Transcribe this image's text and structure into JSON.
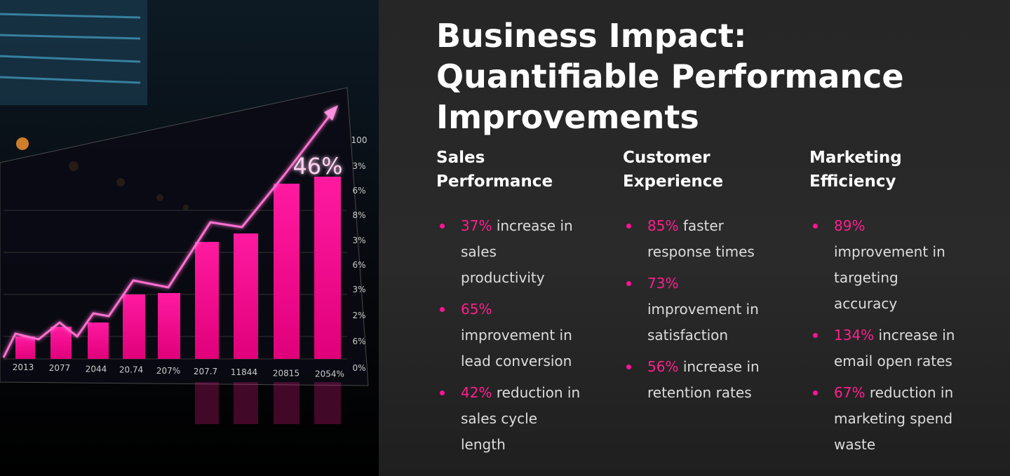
{
  "image": {
    "big_label": "46%",
    "x_labels": [
      "2013",
      "2077",
      "2044",
      "20.74",
      "207%",
      "207.7",
      "11844",
      "20815",
      "2054%"
    ],
    "axis_labels": [
      "100",
      "3%",
      "6%",
      "8%",
      "3%",
      "6%",
      "3%",
      "2%",
      "6%",
      "0%"
    ]
  },
  "header": {
    "title": "Business Impact: Quantifiable Performance Improvements"
  },
  "columns": [
    {
      "heading": "Sales Performance",
      "items": [
        {
          "highlight": "37%",
          "text": "increase in sales productivity"
        },
        {
          "highlight": "65%",
          "text": "improvement in lead conversion"
        },
        {
          "highlight": "42%",
          "text": "reduction in sales cycle length"
        }
      ]
    },
    {
      "heading": "Customer Experience",
      "items": [
        {
          "highlight": "85%",
          "text": "faster response times"
        },
        {
          "highlight": "73%",
          "text": "improvement in satisfaction"
        },
        {
          "highlight": "56%",
          "text": "increase in retention rates"
        }
      ]
    },
    {
      "heading": "Marketing Efficiency",
      "items": [
        {
          "highlight": "89%",
          "text": "improvement in targeting accuracy"
        },
        {
          "highlight": "134%",
          "text": "increase in email open rates"
        },
        {
          "highlight": "67%",
          "text": "reduction in marketing spend waste"
        }
      ]
    }
  ]
}
